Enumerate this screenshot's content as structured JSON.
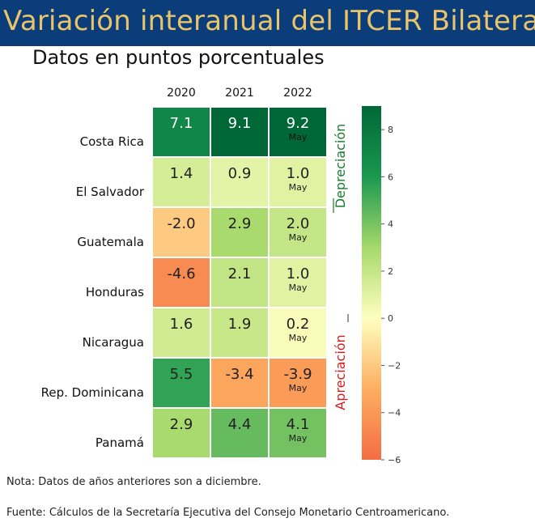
{
  "header": {
    "title": "Variación interanual del ITCER Bilateral",
    "subtitle": "Datos en puntos porcentuales"
  },
  "footer": {
    "note_label": "Nota:",
    "note_text": "Datos de años anteriores son a diciembre.",
    "source_label": "Fuente:",
    "source_text": "Cálculos de la Secretaría Ejecutiva del Consejo Monetario Centroamericano."
  },
  "chart_data": {
    "type": "heatmap",
    "columns": [
      "2020",
      "2021",
      "2022"
    ],
    "rows": [
      "Costa Rica",
      "El Salvador",
      "Guatemala",
      "Honduras",
      "Nicaragua",
      "Rep. Dominicana",
      "Panamá"
    ],
    "values": [
      [
        7.1,
        9.1,
        9.2
      ],
      [
        1.4,
        0.9,
        1.0
      ],
      [
        -2.0,
        2.9,
        2.0
      ],
      [
        -4.6,
        2.1,
        1.0
      ],
      [
        1.6,
        1.9,
        0.2
      ],
      [
        5.5,
        -3.4,
        -3.9
      ],
      [
        2.9,
        4.4,
        4.1
      ]
    ],
    "value_labels": [
      [
        "7.1",
        "9.1",
        "9.2"
      ],
      [
        "1.4",
        "0.9",
        "1.0"
      ],
      [
        "-2.0",
        "2.9",
        "2.0"
      ],
      [
        "-4.6",
        "2.1",
        "1.0"
      ],
      [
        "1.6",
        "1.9",
        "0.2"
      ],
      [
        "5.5",
        "-3.4",
        "-3.9"
      ],
      [
        "2.9",
        "4.4",
        "4.1"
      ]
    ],
    "last_column_note": "May",
    "colorbar": {
      "min": -6,
      "max": 9,
      "ticks": [
        "8",
        "6",
        "4",
        "2",
        "0",
        "−2",
        "−4",
        "−6"
      ],
      "tick_values": [
        8,
        6,
        4,
        2,
        0,
        -2,
        -4,
        -6
      ]
    },
    "annotations": {
      "upper": "Depreciación",
      "lower": "Apreciación",
      "upper_color": "#1a7a2e",
      "lower_color": "#d7191c"
    },
    "colors": {
      "low": "#f46d43",
      "mid": "#ffffbf",
      "high": "#006837"
    }
  }
}
